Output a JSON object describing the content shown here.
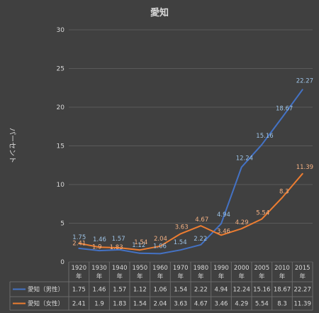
{
  "chart_data": {
    "type": "line",
    "title": "愛知",
    "ylabel": "パーセント",
    "ylim": [
      0,
      30
    ],
    "yticks": [
      0,
      5,
      10,
      15,
      20,
      25,
      30
    ],
    "grid": true,
    "legend": "table-bottom",
    "categories": [
      [
        "1920",
        "年"
      ],
      [
        "1930",
        "年"
      ],
      [
        "1940",
        "年"
      ],
      [
        "1950",
        "年"
      ],
      [
        "1960",
        "年"
      ],
      [
        "1970",
        "年"
      ],
      [
        "1980",
        "年"
      ],
      [
        "1990",
        "年"
      ],
      [
        "2000",
        "年"
      ],
      [
        "2005",
        "年"
      ],
      [
        "2010",
        "年"
      ],
      [
        "2015",
        "年"
      ]
    ],
    "series": [
      {
        "name": "愛知（男性）",
        "color": "#4472c4",
        "label_color": "#9dc3e6",
        "values": [
          1.75,
          1.46,
          1.57,
          1.12,
          1.06,
          1.54,
          2.22,
          4.94,
          12.24,
          15.16,
          18.67,
          22.27
        ],
        "labels": [
          "1.75",
          "1.46",
          "1.57",
          "1.12",
          "1.06",
          "1.54",
          "2.22",
          "4.94",
          "12.24",
          "15.16",
          "18.67",
          "22.27"
        ]
      },
      {
        "name": "愛知（女性）",
        "color": "#ed7d31",
        "label_color": "#f4b183",
        "values": [
          2.41,
          1.9,
          1.83,
          1.54,
          2.04,
          3.63,
          4.67,
          3.46,
          4.29,
          5.54,
          8.3,
          11.39
        ],
        "labels": [
          "2.41",
          "1.9",
          "1.83",
          "1.54",
          "2.04",
          "3.63",
          "4.67",
          "3.46",
          "4.29",
          "5.54",
          "8.3",
          "11.39"
        ]
      }
    ]
  }
}
